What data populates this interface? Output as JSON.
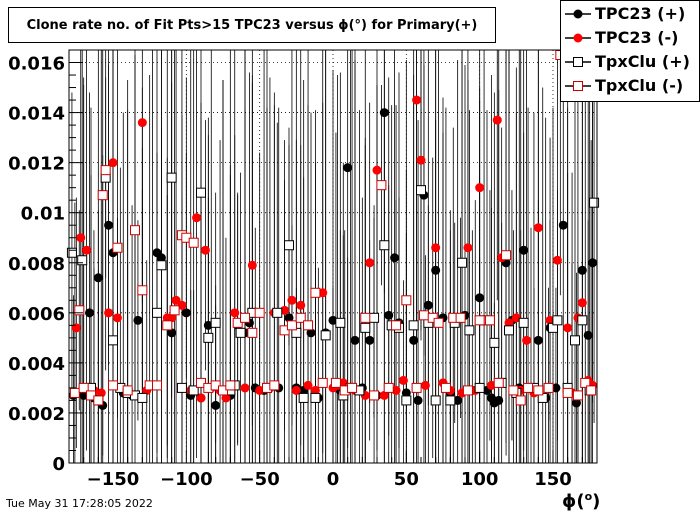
{
  "title": "Clone rate no. of Fit Pts>15 TPC23 versus ϕ(°) for Primary(+)",
  "timestamp": "Tue May 31 17:28:05 2022",
  "legend": {
    "entries": [
      {
        "label": "TPC23 (+)",
        "color": "#000000",
        "marker": "filled-circle"
      },
      {
        "label": "TPC23 (-)",
        "color": "#ff0000",
        "marker": "filled-circle"
      },
      {
        "label": "TpxClu (+)",
        "color": "#000000",
        "marker": "open-square"
      },
      {
        "label": "TpxClu (-)",
        "color": "#cc0000",
        "marker": "open-square"
      }
    ]
  },
  "chart_data": {
    "type": "scatter",
    "title": "Clone rate no. of Fit Pts>15 TPC23 versus ϕ(°) for Primary(+)",
    "xlabel": "ϕ(°)",
    "xlabel_main": "ϕ(",
    "xlabel_sup": "o",
    "xlabel_end": ")",
    "ylabel": "",
    "xlim": [
      -180,
      180
    ],
    "ylim": [
      0,
      0.0165
    ],
    "grid": true,
    "x_ticks": [
      -150,
      -100,
      -50,
      0,
      50,
      100,
      150
    ],
    "x_tick_labels": [
      "−150",
      "−100",
      "−50",
      "0",
      "50",
      "100",
      "150"
    ],
    "y_ticks": [
      0,
      0.002,
      0.004,
      0.006,
      0.008,
      0.01,
      0.012,
      0.014,
      0.016
    ],
    "y_tick_labels": [
      "0",
      "0.002",
      "0.004",
      "0.006",
      "0.008",
      "0.01",
      "0.012",
      "0.014",
      "0.016"
    ],
    "legend_position": "top-right",
    "series": [
      {
        "name": "TPC23 (+)",
        "color": "#000000",
        "marker": "filled-circle",
        "points": [
          [
            -177,
            0.0027
          ],
          [
            -170,
            0.0027
          ],
          [
            -166,
            0.006
          ],
          [
            -163,
            0.0026
          ],
          [
            -160,
            0.0074
          ],
          [
            -157,
            0.0023
          ],
          [
            -153,
            0.0095
          ],
          [
            -150,
            0.0084
          ],
          [
            -143,
            0.0028
          ],
          [
            -137,
            0.0027
          ],
          [
            -133,
            0.0057
          ],
          [
            -130,
            0.0026
          ],
          [
            -120,
            0.0084
          ],
          [
            -117,
            0.0082
          ],
          [
            -113,
            0.0056
          ],
          [
            -110,
            0.0052
          ],
          [
            -100,
            0.006
          ],
          [
            -97,
            0.0027
          ],
          [
            -90,
            0.0026
          ],
          [
            -85,
            0.0055
          ],
          [
            -80,
            0.0023
          ],
          [
            -75,
            0.0029
          ],
          [
            -70,
            0.0027
          ],
          [
            -65,
            0.0055
          ],
          [
            -60,
            0.0052
          ],
          [
            -57,
            0.0056
          ],
          [
            -53,
            0.003
          ],
          [
            -47,
            0.0029
          ],
          [
            -37,
            0.003
          ],
          [
            -30,
            0.0058
          ],
          [
            -25,
            0.003
          ],
          [
            -20,
            0.0029
          ],
          [
            -15,
            0.0052
          ],
          [
            -10,
            0.0026
          ],
          [
            -5,
            0.0052
          ],
          [
            0,
            0.0057
          ],
          [
            5,
            0.0029
          ],
          [
            10,
            0.0118
          ],
          [
            15,
            0.0049
          ],
          [
            20,
            0.003
          ],
          [
            25,
            0.0049
          ],
          [
            30,
            0.0027
          ],
          [
            35,
            0.014
          ],
          [
            38,
            0.0059
          ],
          [
            42,
            0.0082
          ],
          [
            45,
            0.0056
          ],
          [
            50,
            0.0028
          ],
          [
            55,
            0.0049
          ],
          [
            58,
            0.0025
          ],
          [
            62,
            0.0107
          ],
          [
            65,
            0.0063
          ],
          [
            70,
            0.0077
          ],
          [
            75,
            0.0058
          ],
          [
            80,
            0.0028
          ],
          [
            85,
            0.0025
          ],
          [
            90,
            0.0059
          ],
          [
            95,
            0.0029
          ],
          [
            100,
            0.0066
          ],
          [
            105,
            0.0029
          ],
          [
            108,
            0.0026
          ],
          [
            110,
            0.0024
          ],
          [
            113,
            0.0025
          ],
          [
            118,
            0.008
          ],
          [
            122,
            0.0057
          ],
          [
            127,
            0.003
          ],
          [
            130,
            0.0085
          ],
          [
            135,
            0.003
          ],
          [
            140,
            0.0049
          ],
          [
            145,
            0.0026
          ],
          [
            148,
            0.0054
          ],
          [
            152,
            0.003
          ],
          [
            157,
            0.0095
          ],
          [
            163,
            0.0028
          ],
          [
            166,
            0.0024
          ],
          [
            170,
            0.0077
          ],
          [
            174,
            0.0051
          ],
          [
            177,
            0.008
          ]
        ]
      },
      {
        "name": "TPC23 (-)",
        "color": "#ff0000",
        "marker": "filled-circle",
        "points": [
          [
            -175,
            0.0054
          ],
          [
            -172,
            0.009
          ],
          [
            -168,
            0.0085
          ],
          [
            -163,
            0.0029
          ],
          [
            -158,
            0.0028
          ],
          [
            -153,
            0.006
          ],
          [
            -150,
            0.012
          ],
          [
            -147,
            0.0058
          ],
          [
            -140,
            0.0029
          ],
          [
            -130,
            0.0136
          ],
          [
            -127,
            0.0029
          ],
          [
            -123,
            0.0031
          ],
          [
            -117,
            0.0079
          ],
          [
            -113,
            0.0058
          ],
          [
            -110,
            0.0058
          ],
          [
            -107,
            0.0065
          ],
          [
            -103,
            0.0063
          ],
          [
            -97,
            0.0029
          ],
          [
            -93,
            0.0098
          ],
          [
            -90,
            0.0026
          ],
          [
            -87,
            0.0085
          ],
          [
            -83,
            0.003
          ],
          [
            -77,
            0.0029
          ],
          [
            -73,
            0.0026
          ],
          [
            -67,
            0.006
          ],
          [
            -60,
            0.003
          ],
          [
            -55,
            0.0079
          ],
          [
            -50,
            0.0029
          ],
          [
            -43,
            0.003
          ],
          [
            -40,
            0.006
          ],
          [
            -33,
            0.0061
          ],
          [
            -28,
            0.0065
          ],
          [
            -25,
            0.0029
          ],
          [
            -22,
            0.0063
          ],
          [
            -17,
            0.0031
          ],
          [
            -12,
            0.0029
          ],
          [
            -7,
            0.0068
          ],
          [
            0,
            0.003
          ],
          [
            3,
            0.0031
          ],
          [
            7,
            0.0032
          ],
          [
            10,
            0.003
          ],
          [
            15,
            0.0029
          ],
          [
            22,
            0.0027
          ],
          [
            25,
            0.008
          ],
          [
            30,
            0.0117
          ],
          [
            35,
            0.0027
          ],
          [
            43,
            0.0029
          ],
          [
            48,
            0.0033
          ],
          [
            57,
            0.0145
          ],
          [
            60,
            0.0121
          ],
          [
            63,
            0.0031
          ],
          [
            70,
            0.0086
          ],
          [
            75,
            0.0032
          ],
          [
            80,
            0.0029
          ],
          [
            88,
            0.0028
          ],
          [
            92,
            0.0086
          ],
          [
            97,
            0.0029
          ],
          [
            100,
            0.011
          ],
          [
            108,
            0.0031
          ],
          [
            112,
            0.0137
          ],
          [
            115,
            0.0082
          ],
          [
            120,
            0.0056
          ],
          [
            125,
            0.0058
          ],
          [
            128,
            0.0029
          ],
          [
            132,
            0.0049
          ],
          [
            137,
            0.0028
          ],
          [
            140,
            0.0094
          ],
          [
            148,
            0.0057
          ],
          [
            153,
            0.0081
          ],
          [
            160,
            0.0054
          ],
          [
            163,
            0.0028
          ],
          [
            167,
            0.0058
          ],
          [
            170,
            0.0064
          ],
          [
            174,
            0.0033
          ],
          [
            177,
            0.0031
          ]
        ]
      },
      {
        "name": "TpxClu (+)",
        "color": "#000000",
        "marker": "open-square",
        "points": [
          [
            -178,
            0.0084
          ],
          [
            -171,
            0.0081
          ],
          [
            -165,
            0.003
          ],
          [
            -160,
            0.0025
          ],
          [
            -155,
            0.0114
          ],
          [
            -150,
            0.0049
          ],
          [
            -145,
            0.003
          ],
          [
            -140,
            0.0028
          ],
          [
            -135,
            0.0027
          ],
          [
            -130,
            0.0026
          ],
          [
            -120,
            0.006
          ],
          [
            -117,
            0.0079
          ],
          [
            -110,
            0.0114
          ],
          [
            -103,
            0.003
          ],
          [
            -95,
            0.0029
          ],
          [
            -90,
            0.0108
          ],
          [
            -85,
            0.005
          ],
          [
            -80,
            0.0056
          ],
          [
            -70,
            0.0029
          ],
          [
            -67,
            0.0031
          ],
          [
            -63,
            0.0052
          ],
          [
            -55,
            0.006
          ],
          [
            -45,
            0.003
          ],
          [
            -38,
            0.006
          ],
          [
            -30,
            0.0087
          ],
          [
            -25,
            0.0052
          ],
          [
            -20,
            0.0026
          ],
          [
            -12,
            0.0026
          ],
          [
            -5,
            0.0051
          ],
          [
            5,
            0.0056
          ],
          [
            7,
            0.0027
          ],
          [
            12,
            0.003
          ],
          [
            18,
            0.0029
          ],
          [
            22,
            0.0054
          ],
          [
            28,
            0.0058
          ],
          [
            35,
            0.0087
          ],
          [
            40,
            0.0055
          ],
          [
            45,
            0.0054
          ],
          [
            50,
            0.0025
          ],
          [
            55,
            0.0055
          ],
          [
            60,
            0.0109
          ],
          [
            65,
            0.0056
          ],
          [
            70,
            0.0025
          ],
          [
            80,
            0.0025
          ],
          [
            83,
            0.0056
          ],
          [
            88,
            0.008
          ],
          [
            93,
            0.0053
          ],
          [
            100,
            0.003
          ],
          [
            103,
            0.0057
          ],
          [
            110,
            0.0048
          ],
          [
            115,
            0.0032
          ],
          [
            120,
            0.0053
          ],
          [
            125,
            0.0028
          ],
          [
            130,
            0.0056
          ],
          [
            137,
            0.003
          ],
          [
            143,
            0.0026
          ],
          [
            150,
            0.0054
          ],
          [
            153,
            0.0057
          ],
          [
            160,
            0.003
          ],
          [
            165,
            0.0049
          ],
          [
            170,
            0.0057
          ],
          [
            175,
            0.0029
          ],
          [
            178,
            0.0104
          ]
        ]
      },
      {
        "name": "TpxClu (-)",
        "color": "#cc0000",
        "marker": "open-square",
        "points": [
          [
            -176,
            0.0028
          ],
          [
            -173,
            0.0061
          ],
          [
            -170,
            0.003
          ],
          [
            -165,
            0.0027
          ],
          [
            -160,
            0.0025
          ],
          [
            -157,
            0.0107
          ],
          [
            -155,
            0.0117
          ],
          [
            -150,
            0.0031
          ],
          [
            -147,
            0.0086
          ],
          [
            -140,
            0.0029
          ],
          [
            -135,
            0.0093
          ],
          [
            -130,
            0.0069
          ],
          [
            -125,
            0.0031
          ],
          [
            -120,
            0.0031
          ],
          [
            -113,
            0.0055
          ],
          [
            -108,
            0.0061
          ],
          [
            -103,
            0.0091
          ],
          [
            -100,
            0.009
          ],
          [
            -95,
            0.0088
          ],
          [
            -90,
            0.0032
          ],
          [
            -85,
            0.003
          ],
          [
            -80,
            0.0031
          ],
          [
            -75,
            0.0029
          ],
          [
            -70,
            0.0031
          ],
          [
            -65,
            0.0056
          ],
          [
            -60,
            0.0058
          ],
          [
            -55,
            0.0052
          ],
          [
            -50,
            0.006
          ],
          [
            -45,
            0.003
          ],
          [
            -40,
            0.0031
          ],
          [
            -33,
            0.0053
          ],
          [
            -28,
            0.0055
          ],
          [
            -22,
            0.0058
          ],
          [
            -17,
            0.0055
          ],
          [
            -12,
            0.0068
          ],
          [
            -7,
            0.0032
          ],
          [
            2,
            0.0032
          ],
          [
            8,
            0.0029
          ],
          [
            13,
            0.003
          ],
          [
            22,
            0.0058
          ],
          [
            28,
            0.0027
          ],
          [
            33,
            0.0111
          ],
          [
            38,
            0.003
          ],
          [
            43,
            0.0055
          ],
          [
            50,
            0.0065
          ],
          [
            57,
            0.003
          ],
          [
            62,
            0.0059
          ],
          [
            68,
            0.0058
          ],
          [
            72,
            0.0056
          ],
          [
            77,
            0.003
          ],
          [
            82,
            0.0058
          ],
          [
            87,
            0.0058
          ],
          [
            92,
            0.0029
          ],
          [
            100,
            0.0057
          ],
          [
            107,
            0.0057
          ],
          [
            113,
            0.0032
          ],
          [
            118,
            0.0083
          ],
          [
            123,
            0.0029
          ],
          [
            128,
            0.0025
          ],
          [
            133,
            0.003
          ],
          [
            140,
            0.0029
          ],
          [
            147,
            0.003
          ],
          [
            155,
            0.0163
          ],
          [
            160,
            0.0028
          ],
          [
            167,
            0.0027
          ],
          [
            172,
            0.0032
          ],
          [
            176,
            0.0029
          ]
        ]
      }
    ]
  }
}
